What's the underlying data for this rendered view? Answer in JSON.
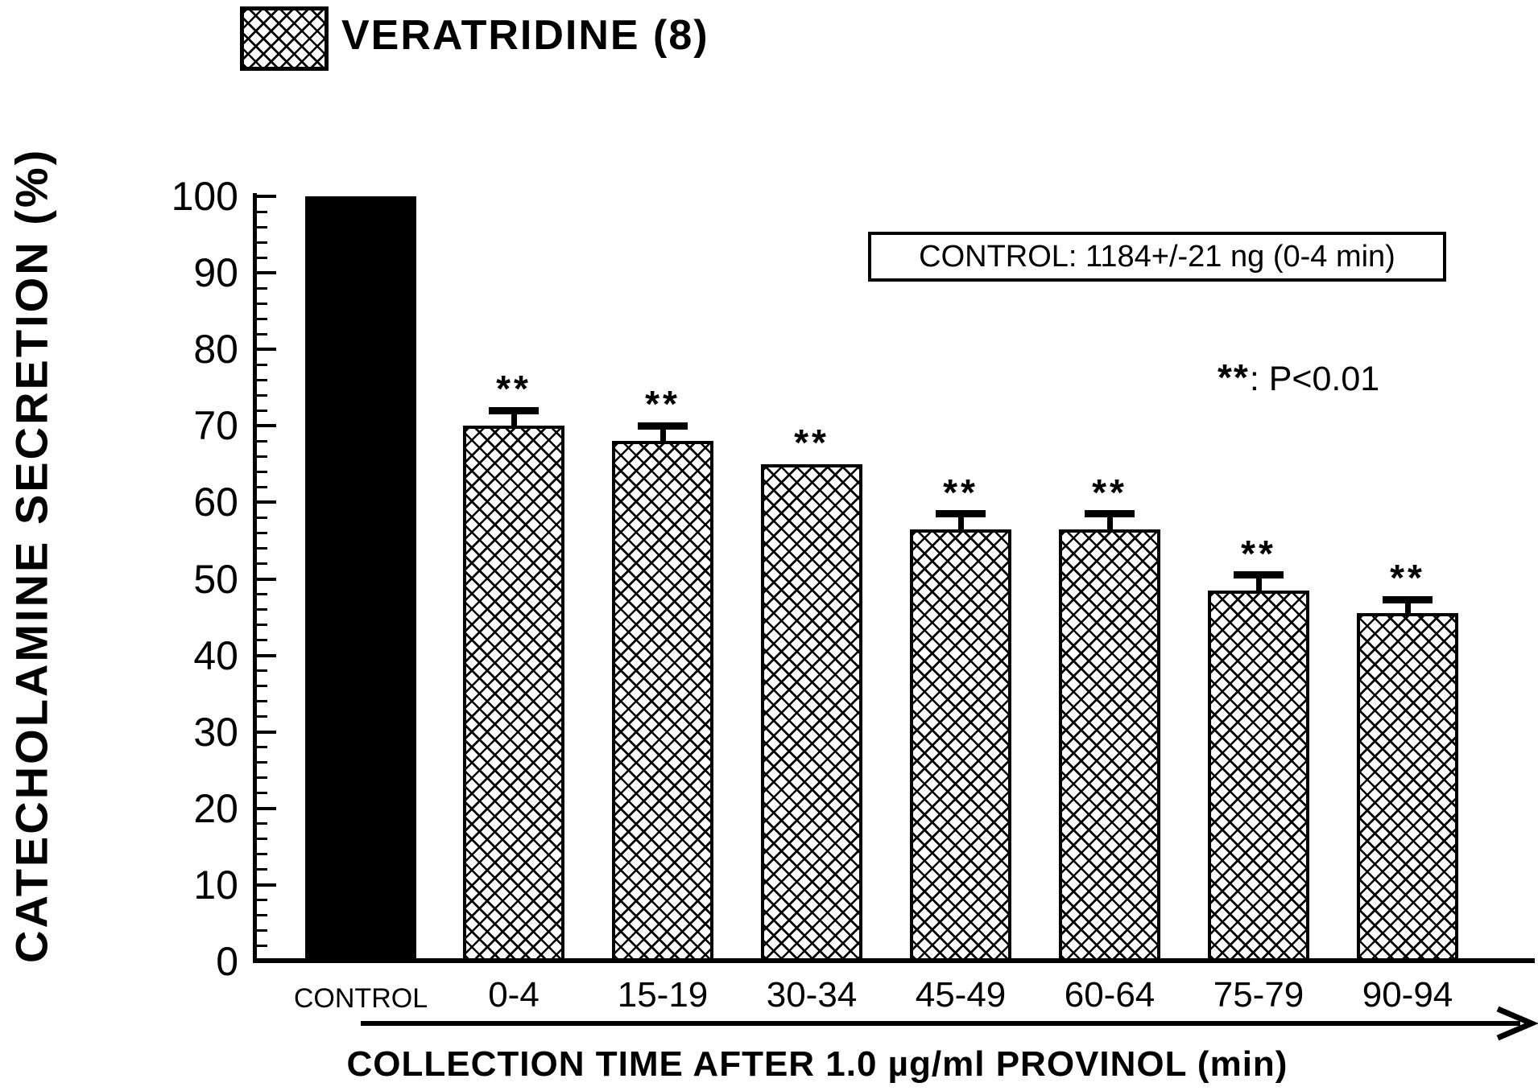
{
  "legend": {
    "label": "VERATRIDINE (8)",
    "swatch": "crosshatch-pattern"
  },
  "annotations": {
    "control_box": "CONTROL: 1184+/-21 ng (0-4 min)",
    "significance_stars": "**",
    "significance_label": ": P<0.01"
  },
  "chart_data": {
    "type": "bar",
    "title": "",
    "ylabel": "CATECHOLAMINE SECRETION (%)",
    "xlabel": "COLLECTION TIME AFTER 1.0 µg/ml PROVINOL (min)",
    "ylim": [
      0,
      100
    ],
    "yticks": [
      0,
      10,
      20,
      30,
      40,
      50,
      60,
      70,
      80,
      90,
      100
    ],
    "minor_tick_step": 2,
    "grid": false,
    "legend_position": "top-left",
    "categories": [
      "CONTROL",
      "0-4",
      "15-19",
      "30-34",
      "45-49",
      "60-64",
      "75-79",
      "90-94"
    ],
    "series": [
      {
        "name": "VERATRIDINE (8)",
        "values": [
          100,
          70,
          68,
          65,
          56.5,
          56.5,
          48.5,
          45.5
        ],
        "errors": [
          0,
          2,
          2,
          0,
          2,
          2,
          2,
          1.8
        ],
        "significance": [
          "",
          "**",
          "**",
          "**",
          "**",
          "**",
          "**",
          "**"
        ],
        "bar_fills": [
          "solid-black",
          "crosshatch",
          "crosshatch",
          "crosshatch",
          "crosshatch",
          "crosshatch",
          "crosshatch",
          "crosshatch"
        ]
      }
    ],
    "colors": {
      "bar": "#000000",
      "background": "#ffffff"
    }
  }
}
